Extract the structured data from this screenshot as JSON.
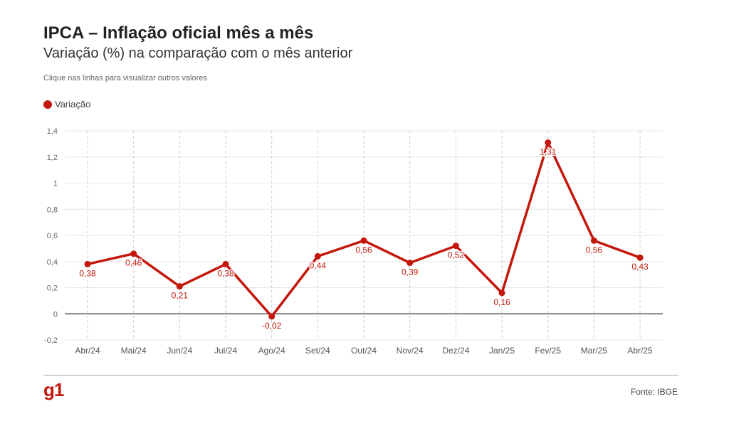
{
  "header": {
    "title": "IPCA – Inflação oficial mês a mês",
    "subtitle": "Variação (%) na comparação com o mês anterior",
    "hint": "Clique nas linhas para visualizar outros valores"
  },
  "colors": {
    "series": "#c4170c",
    "logo": "#c4170c",
    "zero_line": "#555555",
    "grid": "#e6e6e6"
  },
  "footer": {
    "logo_text": "g1",
    "source": "Fonte: IBGE"
  },
  "chart_data": {
    "type": "line",
    "title": "IPCA – Inflação oficial mês a mês",
    "subtitle": "Variação (%) na comparação com o mês anterior",
    "categories": [
      "Abr/24",
      "Mai/24",
      "Jun/24",
      "Jul/24",
      "Ago/24",
      "Set/24",
      "Out/24",
      "Nov/24",
      "Dez/24",
      "Jan/25",
      "Fev/25",
      "Mar/25",
      "Abr/25"
    ],
    "series": [
      {
        "name": "Variação",
        "values": [
          0.38,
          0.46,
          0.21,
          0.38,
          -0.02,
          0.44,
          0.56,
          0.39,
          0.52,
          0.16,
          1.31,
          0.56,
          0.43
        ],
        "labels": [
          "0,38",
          "0,46",
          "0,21",
          "0,38",
          "-0,02",
          "0,44",
          "0,56",
          "0,39",
          "0,52",
          "0,16",
          "1,31",
          "0,56",
          "0,43"
        ]
      }
    ],
    "yticks": [
      -0.2,
      0,
      0.2,
      0.4,
      0.6,
      0.8,
      1,
      1.2,
      1.4
    ],
    "ytick_labels": [
      "-0,2",
      "0",
      "0,2",
      "0,4",
      "0,6",
      "0,8",
      "1",
      "1,2",
      "1,4"
    ],
    "ylim": [
      -0.2,
      1.4
    ],
    "grid": true,
    "legend": "top-left"
  }
}
